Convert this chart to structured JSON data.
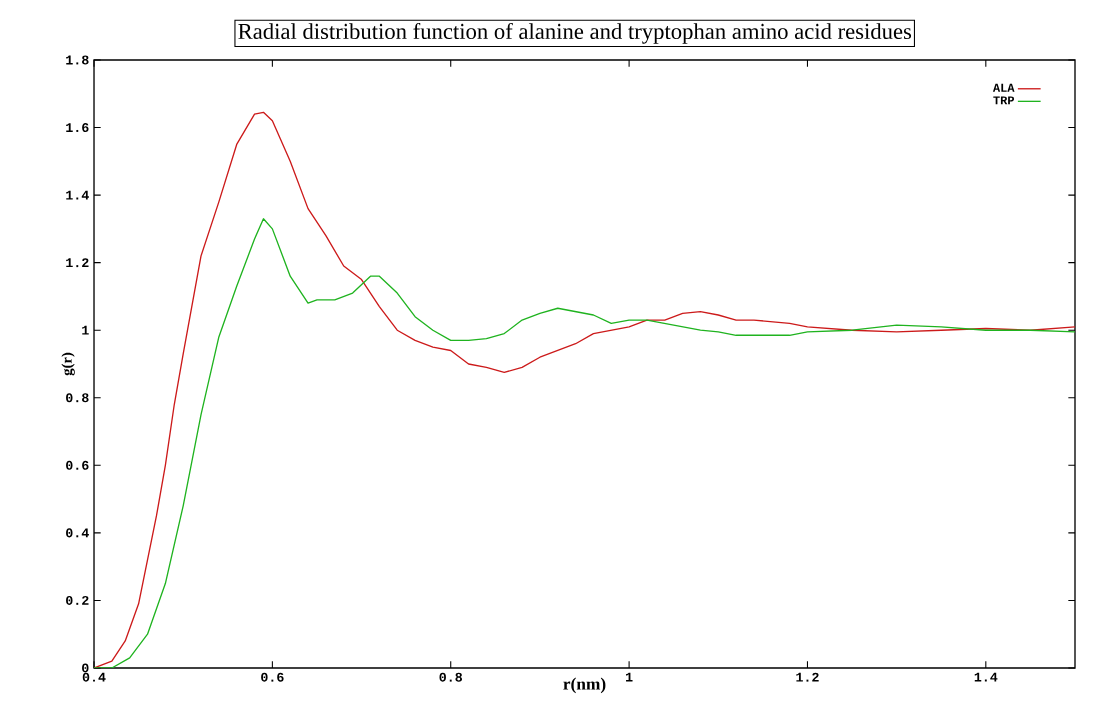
{
  "chart_data": {
    "type": "line",
    "title": "Radial distribution function of alanine and tryptophan amino acid residues",
    "xlabel": "r(nm)",
    "ylabel": "g(r)",
    "xlim": [
      0.4,
      1.5
    ],
    "ylim": [
      0,
      1.8
    ],
    "xticks": [
      0.4,
      0.6,
      0.8,
      1,
      1.2,
      1.4
    ],
    "yticks": [
      0,
      0.2,
      0.4,
      0.6,
      0.8,
      1,
      1.2,
      1.4,
      1.6,
      1.8
    ],
    "grid": false,
    "legend": "top right",
    "marker": "none",
    "line_style": "solid",
    "series": [
      {
        "name": "ALA",
        "color": "#cc1a1a",
        "x": [
          0.4,
          0.42,
          0.435,
          0.45,
          0.47,
          0.48,
          0.49,
          0.5,
          0.52,
          0.54,
          0.56,
          0.58,
          0.59,
          0.6,
          0.62,
          0.64,
          0.66,
          0.68,
          0.7,
          0.72,
          0.74,
          0.76,
          0.78,
          0.8,
          0.82,
          0.84,
          0.86,
          0.88,
          0.9,
          0.92,
          0.94,
          0.96,
          0.98,
          1.0,
          1.02,
          1.04,
          1.06,
          1.08,
          1.1,
          1.12,
          1.14,
          1.16,
          1.18,
          1.2,
          1.25,
          1.3,
          1.35,
          1.4,
          1.45,
          1.5
        ],
        "values": [
          0,
          0.02,
          0.08,
          0.19,
          0.45,
          0.6,
          0.78,
          0.93,
          1.22,
          1.38,
          1.55,
          1.64,
          1.645,
          1.62,
          1.5,
          1.36,
          1.28,
          1.19,
          1.15,
          1.07,
          1.0,
          0.97,
          0.95,
          0.94,
          0.9,
          0.89,
          0.875,
          0.89,
          0.92,
          0.94,
          0.96,
          0.99,
          1.0,
          1.01,
          1.03,
          1.03,
          1.05,
          1.055,
          1.045,
          1.03,
          1.03,
          1.025,
          1.02,
          1.01,
          1.0,
          0.995,
          1.0,
          1.005,
          1.0,
          1.01
        ]
      },
      {
        "name": "TRP",
        "color": "#1fb31f",
        "x": [
          0.4,
          0.42,
          0.44,
          0.46,
          0.48,
          0.5,
          0.52,
          0.54,
          0.56,
          0.58,
          0.59,
          0.6,
          0.62,
          0.64,
          0.65,
          0.67,
          0.69,
          0.71,
          0.72,
          0.74,
          0.76,
          0.78,
          0.8,
          0.82,
          0.84,
          0.86,
          0.88,
          0.9,
          0.92,
          0.94,
          0.96,
          0.98,
          1.0,
          1.02,
          1.04,
          1.06,
          1.08,
          1.1,
          1.12,
          1.14,
          1.18,
          1.2,
          1.25,
          1.3,
          1.35,
          1.4,
          1.45,
          1.5
        ],
        "values": [
          0,
          0,
          0.03,
          0.1,
          0.25,
          0.48,
          0.75,
          0.98,
          1.13,
          1.27,
          1.33,
          1.3,
          1.16,
          1.08,
          1.09,
          1.09,
          1.11,
          1.16,
          1.16,
          1.11,
          1.04,
          1.0,
          0.97,
          0.97,
          0.975,
          0.99,
          1.03,
          1.05,
          1.065,
          1.055,
          1.045,
          1.02,
          1.03,
          1.03,
          1.02,
          1.01,
          1.0,
          0.995,
          0.985,
          0.985,
          0.985,
          0.995,
          1.0,
          1.015,
          1.01,
          1.0,
          1.0,
          0.995
        ]
      }
    ]
  }
}
